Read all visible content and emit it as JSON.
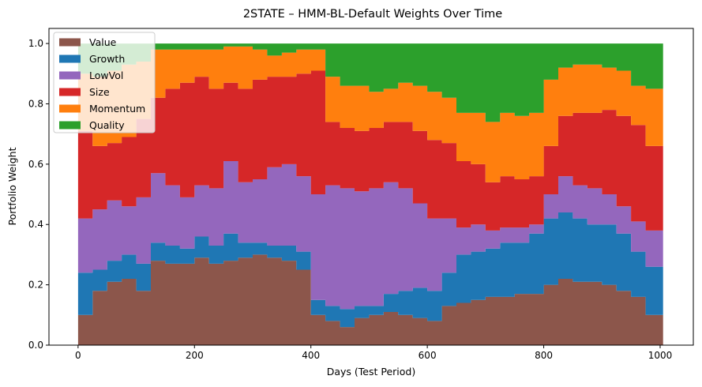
{
  "chart_data": {
    "type": "area",
    "stacked": true,
    "title": "2STATE – HMM-BL-Default Weights Over Time",
    "xlabel": "Days (Test Period)",
    "ylabel": "Portfolio Weight",
    "xlim": [
      -50,
      1057
    ],
    "ylim": [
      0,
      1.05
    ],
    "xticks": [
      0,
      200,
      400,
      600,
      800,
      1000
    ],
    "xtick_labels": [
      "0",
      "200",
      "400",
      "600",
      "800",
      "1000"
    ],
    "yticks": [
      0.0,
      0.2,
      0.4,
      0.6,
      0.8,
      1.0
    ],
    "ytick_labels": [
      "0.0",
      "0.2",
      "0.4",
      "0.6",
      "0.8",
      "1.0"
    ],
    "grid": false,
    "legend_position": "upper-left",
    "x": [
      0,
      25,
      50,
      75,
      100,
      125,
      150,
      175,
      200,
      225,
      250,
      275,
      300,
      325,
      350,
      375,
      400,
      425,
      450,
      475,
      500,
      525,
      550,
      575,
      600,
      625,
      650,
      675,
      700,
      725,
      750,
      775,
      800,
      825,
      850,
      875,
      900,
      925,
      950,
      975,
      1005
    ],
    "series": [
      {
        "name": "Value",
        "color": "#8c564b",
        "values": [
          0.1,
          0.18,
          0.21,
          0.22,
          0.18,
          0.28,
          0.27,
          0.27,
          0.29,
          0.27,
          0.28,
          0.29,
          0.3,
          0.29,
          0.28,
          0.25,
          0.1,
          0.08,
          0.06,
          0.09,
          0.1,
          0.11,
          0.1,
          0.09,
          0.08,
          0.13,
          0.14,
          0.15,
          0.16,
          0.16,
          0.17,
          0.17,
          0.2,
          0.22,
          0.21,
          0.21,
          0.2,
          0.18,
          0.16,
          0.1,
          0.07
        ]
      },
      {
        "name": "Growth",
        "color": "#1f77b4",
        "values": [
          0.14,
          0.07,
          0.07,
          0.08,
          0.09,
          0.06,
          0.06,
          0.05,
          0.07,
          0.06,
          0.09,
          0.05,
          0.04,
          0.04,
          0.05,
          0.06,
          0.05,
          0.05,
          0.06,
          0.04,
          0.03,
          0.06,
          0.08,
          0.1,
          0.1,
          0.11,
          0.16,
          0.16,
          0.16,
          0.18,
          0.17,
          0.2,
          0.22,
          0.22,
          0.21,
          0.19,
          0.2,
          0.19,
          0.15,
          0.16,
          0.17
        ]
      },
      {
        "name": "LowVol",
        "color": "#9467bd",
        "values": [
          0.18,
          0.2,
          0.2,
          0.16,
          0.22,
          0.23,
          0.2,
          0.17,
          0.17,
          0.19,
          0.24,
          0.2,
          0.21,
          0.26,
          0.27,
          0.25,
          0.35,
          0.4,
          0.4,
          0.38,
          0.39,
          0.37,
          0.34,
          0.28,
          0.24,
          0.18,
          0.09,
          0.09,
          0.06,
          0.05,
          0.05,
          0.03,
          0.08,
          0.12,
          0.11,
          0.12,
          0.1,
          0.09,
          0.1,
          0.12,
          0.15
        ]
      },
      {
        "name": "Size",
        "color": "#d62728",
        "values": [
          0.29,
          0.21,
          0.19,
          0.23,
          0.26,
          0.25,
          0.32,
          0.38,
          0.36,
          0.33,
          0.26,
          0.31,
          0.33,
          0.3,
          0.29,
          0.34,
          0.41,
          0.21,
          0.2,
          0.2,
          0.2,
          0.2,
          0.22,
          0.24,
          0.26,
          0.25,
          0.22,
          0.2,
          0.16,
          0.17,
          0.16,
          0.16,
          0.16,
          0.2,
          0.24,
          0.25,
          0.28,
          0.3,
          0.32,
          0.28,
          0.26
        ]
      },
      {
        "name": "Momentum",
        "color": "#ff7f0e",
        "values": [
          0.19,
          0.23,
          0.24,
          0.24,
          0.19,
          0.16,
          0.13,
          0.11,
          0.09,
          0.13,
          0.12,
          0.14,
          0.1,
          0.07,
          0.08,
          0.08,
          0.07,
          0.15,
          0.14,
          0.15,
          0.12,
          0.11,
          0.13,
          0.15,
          0.16,
          0.15,
          0.16,
          0.17,
          0.2,
          0.21,
          0.21,
          0.21,
          0.22,
          0.16,
          0.16,
          0.16,
          0.14,
          0.15,
          0.13,
          0.19,
          0.2
        ]
      },
      {
        "name": "Quality",
        "color": "#2ca02c",
        "values": [
          0.1,
          0.11,
          0.09,
          0.07,
          0.06,
          0.02,
          0.02,
          0.02,
          0.02,
          0.02,
          0.01,
          0.01,
          0.02,
          0.04,
          0.03,
          0.02,
          0.02,
          0.11,
          0.14,
          0.14,
          0.16,
          0.15,
          0.13,
          0.14,
          0.16,
          0.18,
          0.23,
          0.23,
          0.26,
          0.23,
          0.24,
          0.23,
          0.12,
          0.08,
          0.07,
          0.07,
          0.08,
          0.09,
          0.14,
          0.15,
          0.15
        ]
      }
    ]
  }
}
